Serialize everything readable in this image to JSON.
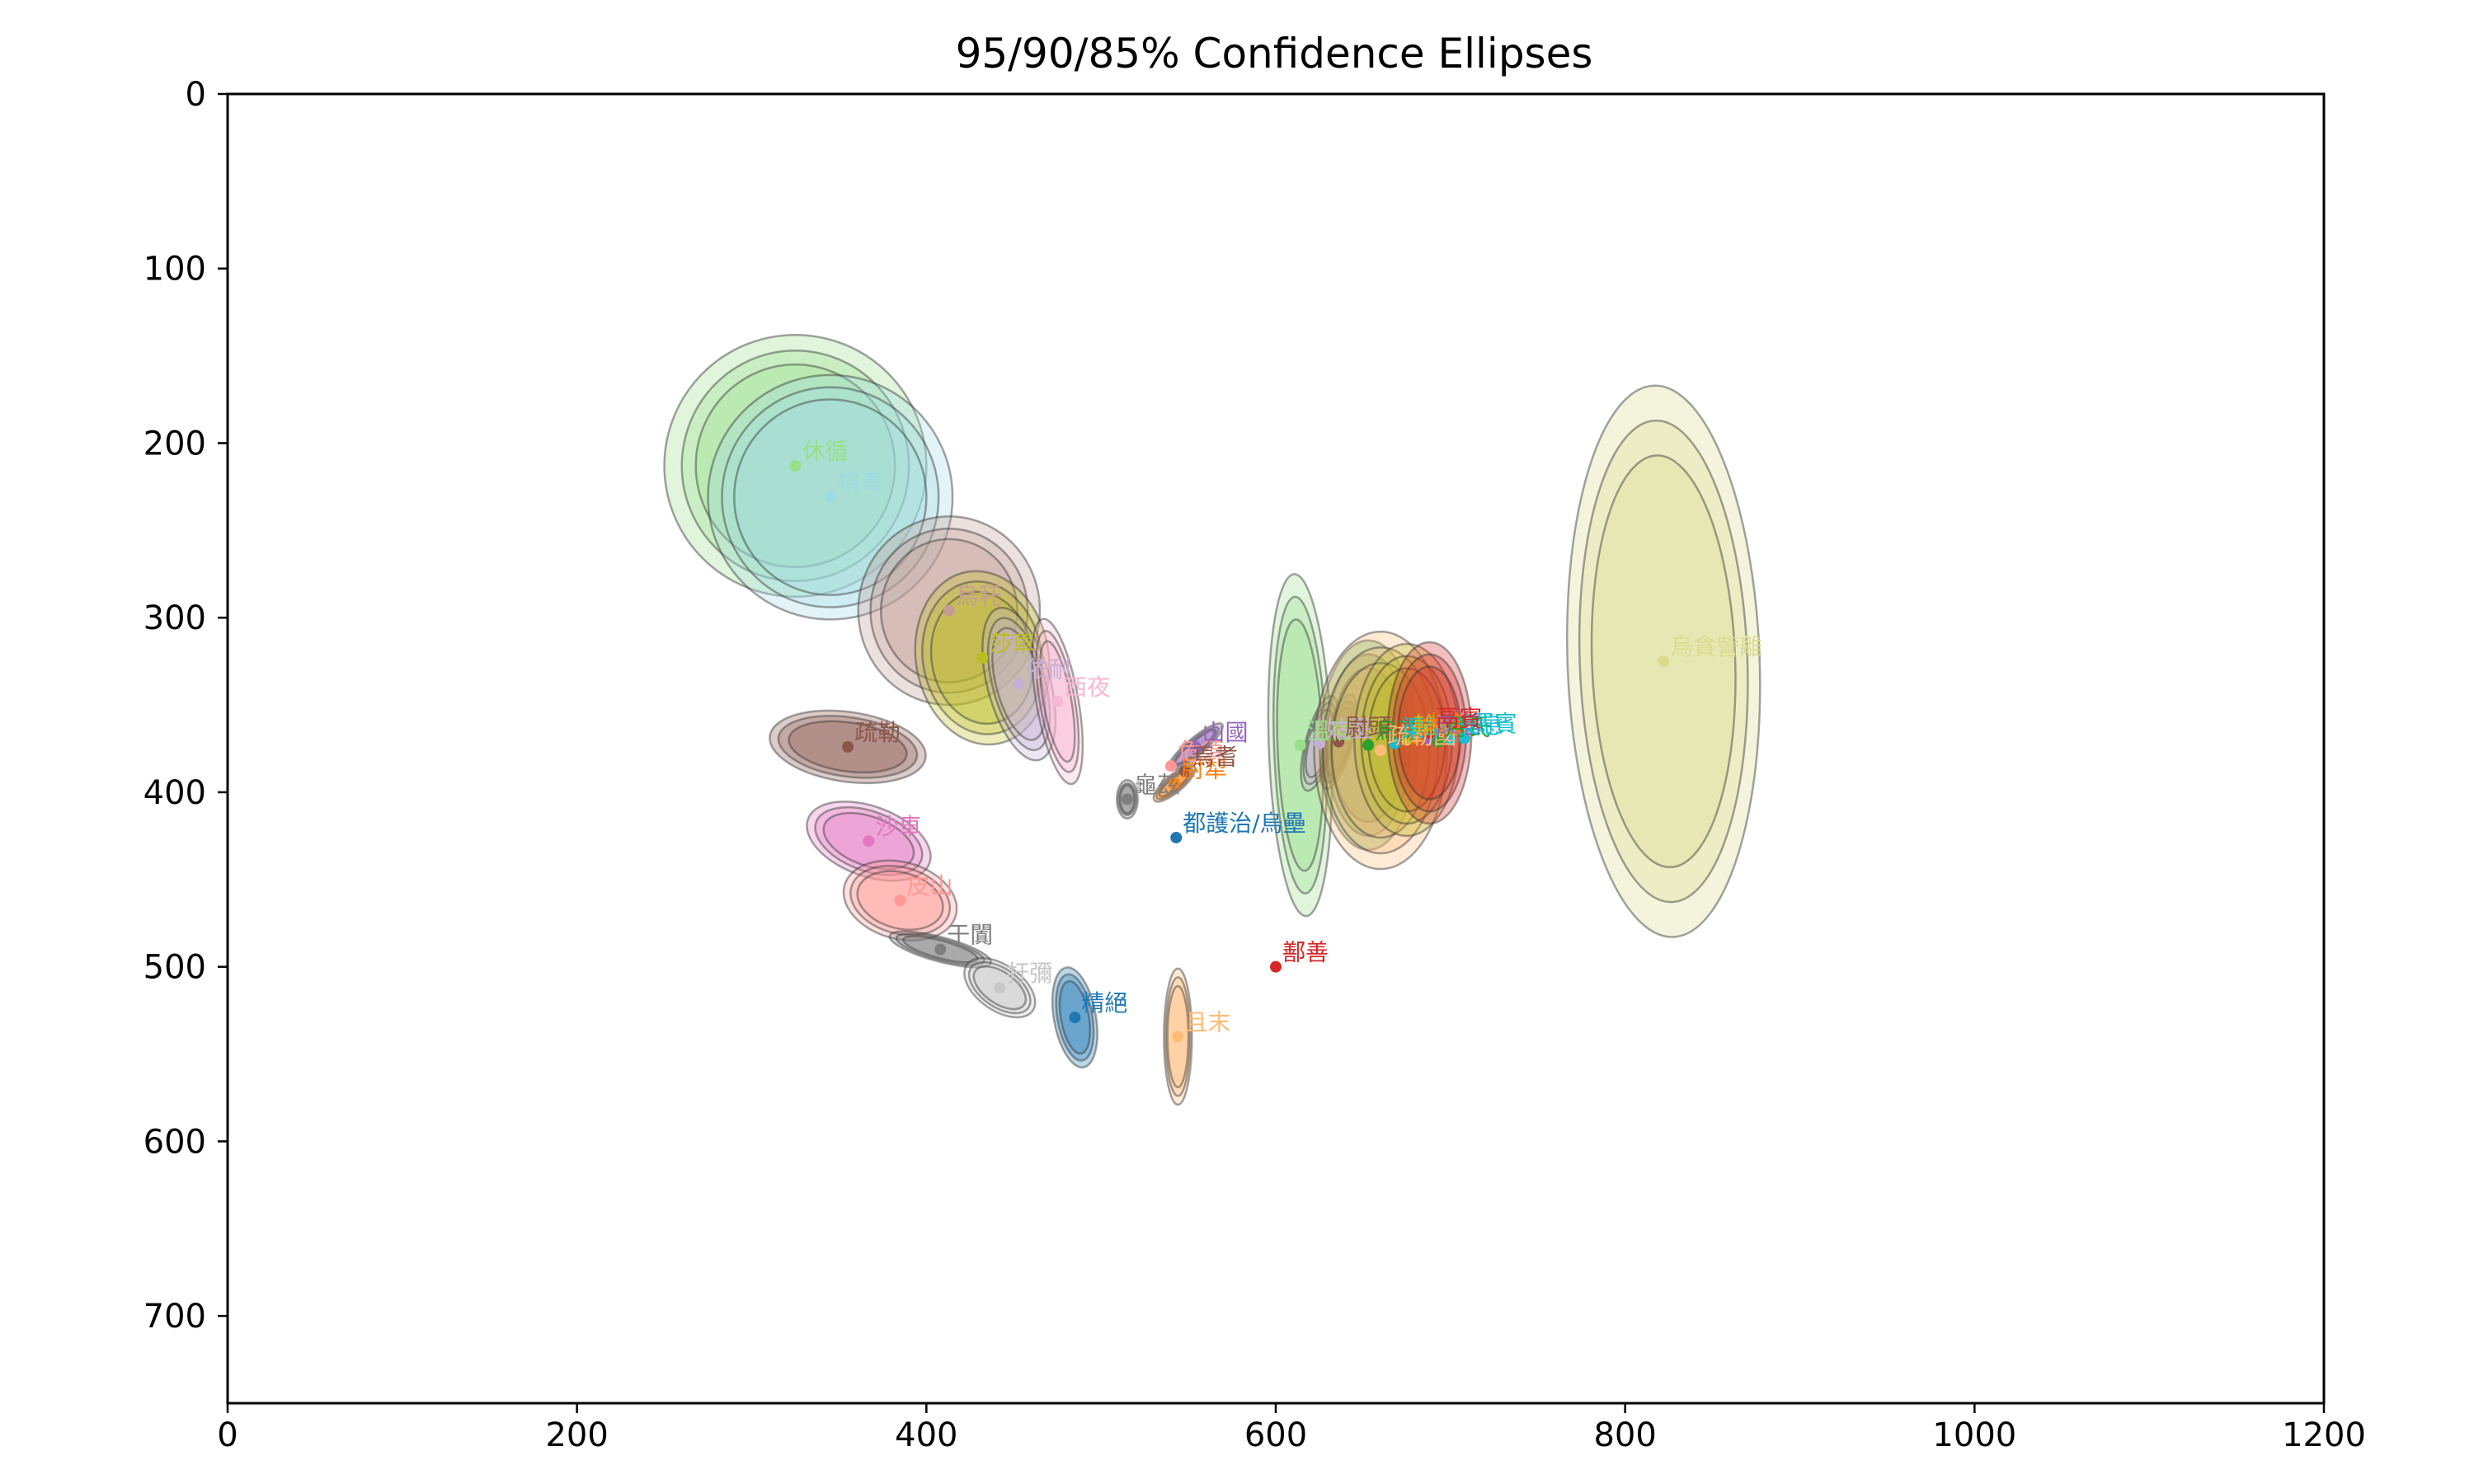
{
  "chart_data": {
    "type": "scatter",
    "title": "95/90/85% Confidence Ellipses",
    "xlabel": "",
    "ylabel": "",
    "xlim": [
      0,
      1200
    ],
    "ylim": [
      750,
      0
    ],
    "y_inverted": true,
    "grid": false,
    "x_ticks": [
      0,
      200,
      400,
      600,
      800,
      1000,
      1200
    ],
    "y_ticks": [
      0,
      100,
      200,
      300,
      400,
      500,
      600,
      700
    ],
    "points": [
      {
        "label": "休循",
        "x": 325,
        "y": 213,
        "color": "#98df8a",
        "ellipses": [
          {
            "rx": 75,
            "ry": 75,
            "angle": 0
          },
          {
            "rx": 65,
            "ry": 66,
            "angle": 0
          },
          {
            "rx": 57,
            "ry": 58,
            "angle": 0
          }
        ]
      },
      {
        "label": "捐毒",
        "x": 345,
        "y": 231,
        "color": "#9edae5",
        "ellipses": [
          {
            "rx": 70,
            "ry": 70,
            "angle": 0
          },
          {
            "rx": 62,
            "ry": 63,
            "angle": 0
          },
          {
            "rx": 55,
            "ry": 56,
            "angle": 0
          }
        ]
      },
      {
        "label": "烏秅",
        "x": 413,
        "y": 296,
        "color": "#c49c94",
        "ellipses": [
          {
            "rx": 52,
            "ry": 54,
            "angle": 0
          },
          {
            "rx": 45,
            "ry": 47,
            "angle": 0
          },
          {
            "rx": 39,
            "ry": 41,
            "angle": 0
          }
        ]
      },
      {
        "label": "莎車",
        "x": 432,
        "y": 323,
        "color": "#bcbd22",
        "ellipses": [
          {
            "rx": 38,
            "ry": 50,
            "angle": -10
          },
          {
            "rx": 34,
            "ry": 44,
            "angle": -10
          },
          {
            "rx": 29,
            "ry": 38,
            "angle": -10
          }
        ]
      },
      {
        "label": "依耐",
        "x": 453,
        "y": 338,
        "color": "#c5b0d5",
        "ellipses": [
          {
            "rx": 18,
            "ry": 45,
            "angle": -15
          },
          {
            "rx": 15,
            "ry": 39,
            "angle": -15
          },
          {
            "rx": 13,
            "ry": 33,
            "angle": -15
          }
        ]
      },
      {
        "label": "西夜",
        "x": 475,
        "y": 348,
        "color": "#f7b6d2",
        "ellipses": [
          {
            "rx": 12,
            "ry": 48,
            "angle": -10
          },
          {
            "rx": 10,
            "ry": 41,
            "angle": -10
          },
          {
            "rx": 8,
            "ry": 35,
            "angle": -10
          }
        ]
      },
      {
        "label": "疏勒",
        "x": 355,
        "y": 374,
        "color": "#8c564b",
        "ellipses": [
          {
            "rx": 45,
            "ry": 20,
            "angle": 8
          },
          {
            "rx": 40,
            "ry": 17,
            "angle": 8
          },
          {
            "rx": 34,
            "ry": 14,
            "angle": 8
          }
        ]
      },
      {
        "label": "沙車",
        "x": 367,
        "y": 428,
        "color": "#e377c2",
        "ellipses": [
          {
            "rx": 37,
            "ry": 20,
            "angle": 20
          },
          {
            "rx": 32,
            "ry": 17,
            "angle": 20
          },
          {
            "rx": 27,
            "ry": 14,
            "angle": 20
          }
        ]
      },
      {
        "label": "皮山",
        "x": 385,
        "y": 462,
        "color": "#ff9896",
        "ellipses": [
          {
            "rx": 33,
            "ry": 22,
            "angle": 15
          },
          {
            "rx": 29,
            "ry": 19,
            "angle": 15
          },
          {
            "rx": 25,
            "ry": 16,
            "angle": 15
          }
        ]
      },
      {
        "label": "于闐",
        "x": 408,
        "y": 490,
        "color": "#7f7f7f",
        "ellipses": [
          {
            "rx": 30,
            "ry": 7,
            "angle": 15
          },
          {
            "rx": 26,
            "ry": 6,
            "angle": 15
          },
          {
            "rx": 22,
            "ry": 5,
            "angle": 15
          }
        ]
      },
      {
        "label": "扜彌",
        "x": 442,
        "y": 512,
        "color": "#c7c7c7",
        "ellipses": [
          {
            "rx": 23,
            "ry": 13,
            "angle": 35
          },
          {
            "rx": 20,
            "ry": 11,
            "angle": 35
          },
          {
            "rx": 17,
            "ry": 9,
            "angle": 35
          }
        ]
      },
      {
        "label": "精絕",
        "x": 485,
        "y": 529,
        "color": "#1f77b4",
        "ellipses": [
          {
            "rx": 12,
            "ry": 29,
            "angle": -10
          },
          {
            "rx": 10,
            "ry": 25,
            "angle": -10
          },
          {
            "rx": 8,
            "ry": 21,
            "angle": -10
          }
        ]
      },
      {
        "label": "且末",
        "x": 544,
        "y": 540,
        "color": "#ffbb78",
        "ellipses": [
          {
            "rx": 8,
            "ry": 39,
            "angle": 0
          },
          {
            "rx": 7,
            "ry": 34,
            "angle": 0
          },
          {
            "rx": 6,
            "ry": 29,
            "angle": 0
          }
        ]
      },
      {
        "label": "鄯善",
        "x": 600,
        "y": 500,
        "color": "#d62728",
        "ellipses": []
      },
      {
        "label": "都護治/烏壘",
        "x": 543,
        "y": 426,
        "color": "#1f77b4",
        "ellipses": []
      },
      {
        "label": "尉犁",
        "x": 542,
        "y": 395,
        "color": "#ff7f0e",
        "ellipses": [
          {
            "rx": 15,
            "ry": 5,
            "angle": -40
          },
          {
            "rx": 13,
            "ry": 4,
            "angle": -40
          },
          {
            "rx": 11,
            "ry": 3,
            "angle": -40
          }
        ]
      },
      {
        "label": "危須",
        "x": 540,
        "y": 385,
        "color": "#ff9896",
        "ellipses": []
      },
      {
        "label": "山國",
        "x": 554,
        "y": 374,
        "color": "#9467bd",
        "ellipses": [
          {
            "rx": 20,
            "ry": 5,
            "angle": -40
          },
          {
            "rx": 17,
            "ry": 4,
            "angle": -40
          },
          {
            "rx": 15,
            "ry": 3,
            "angle": -40
          }
        ]
      },
      {
        "label": "焉耆",
        "x": 548,
        "y": 388,
        "color": "#8c564b",
        "ellipses": []
      },
      {
        "label": "龜茲",
        "x": 515,
        "y": 404,
        "color": "#7f7f7f",
        "ellipses": [
          {
            "rx": 6,
            "ry": 11,
            "angle": 0
          },
          {
            "rx": 5,
            "ry": 9,
            "angle": 0
          },
          {
            "rx": 4,
            "ry": 8,
            "angle": 0
          }
        ]
      },
      {
        "label": "溫宿",
        "x": 614,
        "y": 373,
        "color": "#98df8a",
        "ellipses": [
          {
            "rx": 18,
            "ry": 98,
            "angle": -2
          },
          {
            "rx": 15,
            "ry": 85,
            "angle": -2
          },
          {
            "rx": 13,
            "ry": 72,
            "angle": -2
          }
        ]
      },
      {
        "label": "姑墨",
        "x": 625,
        "y": 372,
        "color": "#c5b0d5",
        "ellipses": [
          {
            "rx": 8,
            "ry": 28,
            "angle": 15
          },
          {
            "rx": 7,
            "ry": 24,
            "angle": 15
          },
          {
            "rx": 6,
            "ry": 20,
            "angle": 15
          }
        ]
      },
      {
        "label": "尉頭",
        "x": 636,
        "y": 371,
        "color": "#8c564b",
        "ellipses": [
          {
            "rx": 8,
            "ry": 28,
            "angle": 15
          },
          {
            "rx": 7,
            "ry": 24,
            "angle": 15
          },
          {
            "rx": 6,
            "ry": 20,
            "angle": 15
          }
        ]
      },
      {
        "label": "烏孫",
        "x": 653,
        "y": 373,
        "color": "#2ca02c",
        "ellipses": [
          {
            "rx": 28,
            "ry": 60,
            "angle": 0
          },
          {
            "rx": 24,
            "ry": 52,
            "angle": 0
          },
          {
            "rx": 21,
            "ry": 44,
            "angle": 0
          }
        ]
      },
      {
        "label": "疏勒國",
        "x": 660,
        "y": 376,
        "color": "#ffbb78",
        "ellipses": [
          {
            "rx": 38,
            "ry": 68,
            "angle": 0
          },
          {
            "rx": 33,
            "ry": 59,
            "angle": 0
          },
          {
            "rx": 28,
            "ry": 50,
            "angle": 0
          }
        ]
      },
      {
        "label": "渠犁",
        "x": 668,
        "y": 372,
        "color": "#17becf",
        "ellipses": []
      },
      {
        "label": "輪臺",
        "x": 675,
        "y": 370,
        "color": "#bcbd22",
        "ellipses": [
          {
            "rx": 30,
            "ry": 55,
            "angle": 0
          },
          {
            "rx": 26,
            "ry": 48,
            "angle": 0
          },
          {
            "rx": 22,
            "ry": 41,
            "angle": 0
          }
        ]
      },
      {
        "label": "大宛",
        "x": 680,
        "y": 369,
        "color": "#ff7f0e",
        "ellipses": []
      },
      {
        "label": "康居",
        "x": 688,
        "y": 370,
        "color": "#9467bd",
        "ellipses": []
      },
      {
        "label": "月氏",
        "x": 693,
        "y": 371,
        "color": "#2ca02c",
        "ellipses": []
      },
      {
        "label": "安息",
        "x": 700,
        "y": 370,
        "color": "#17becf",
        "ellipses": []
      },
      {
        "label": "罽賓",
        "x": 708,
        "y": 369,
        "color": "#17becf",
        "ellipses": []
      },
      {
        "label": "鬲賓",
        "x": 688,
        "y": 366,
        "color": "#d62728",
        "ellipses": [
          {
            "rx": 24,
            "ry": 52,
            "angle": 0
          },
          {
            "rx": 21,
            "ry": 45,
            "angle": 0
          },
          {
            "rx": 18,
            "ry": 38,
            "angle": 0
          }
        ]
      },
      {
        "label": "烏貪訾離",
        "x": 822,
        "y": 325,
        "color": "#dbdb8d",
        "ellipses": [
          {
            "rx": 55,
            "ry": 158,
            "angle": -2
          },
          {
            "rx": 48,
            "ry": 138,
            "angle": -2
          },
          {
            "rx": 41,
            "ry": 118,
            "angle": -2
          }
        ]
      }
    ]
  }
}
